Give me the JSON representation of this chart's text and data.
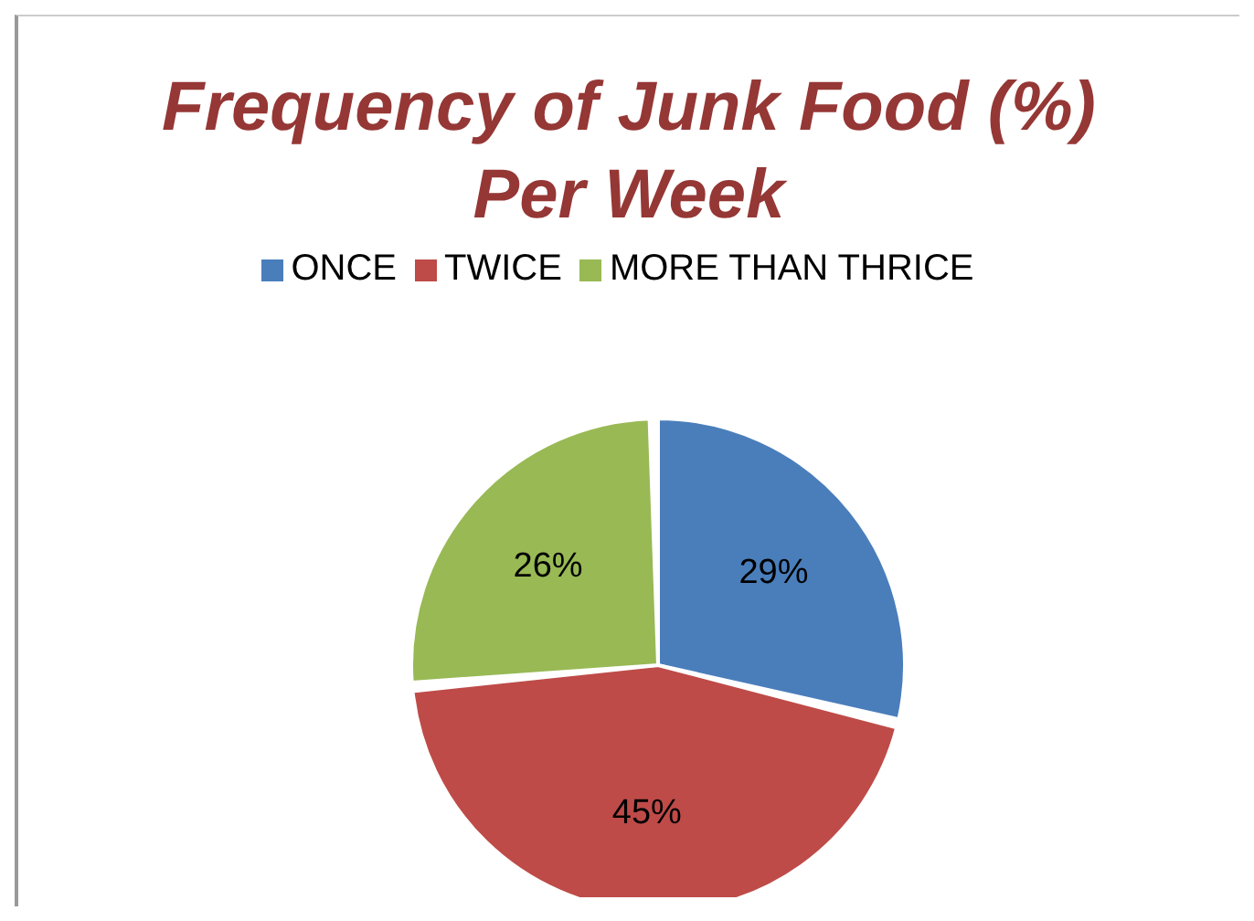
{
  "chart_data": {
    "type": "pie",
    "title": "Frequency of Junk Food (%) Per Week",
    "categories": [
      "ONCE",
      "TWICE",
      "MORE THAN THRICE"
    ],
    "values": [
      29,
      45,
      26
    ],
    "colors": [
      "#4a7ebb",
      "#be4b48",
      "#98b954"
    ],
    "value_labels": [
      "29%",
      "45%",
      "26%"
    ],
    "legend": "top"
  }
}
